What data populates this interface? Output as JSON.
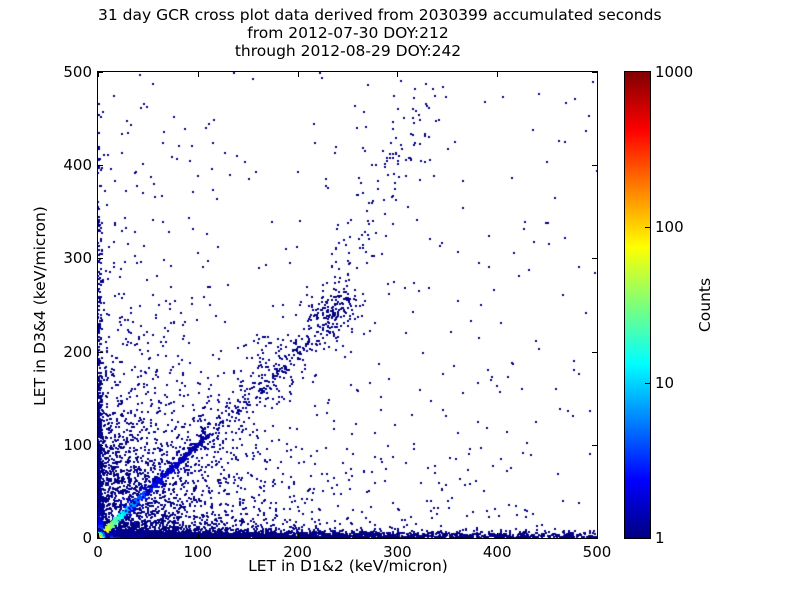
{
  "figure": {
    "background": "#ffffff",
    "title_lines": [
      "31 day GCR cross plot data derived from 2030399 accumulated seconds",
      "from 2012-07-30 DOY:212",
      "through 2012-08-29 DOY:242"
    ]
  },
  "chart_data": {
    "type": "heatmap",
    "title": "31 day GCR cross plot data derived from 2030399 accumulated seconds",
    "subtitle_lines": [
      "from 2012-07-30 DOY:212",
      "through 2012-08-29 DOY:242"
    ],
    "xlabel": "LET in D1&2 (keV/micron)",
    "ylabel": "LET in D3&4 (keV/micron)",
    "xlim": [
      0,
      500
    ],
    "ylim": [
      0,
      500
    ],
    "x_ticks": [
      0,
      100,
      200,
      300,
      400,
      500
    ],
    "y_ticks": [
      0,
      100,
      200,
      300,
      400,
      500
    ],
    "grid": false,
    "point_color_min": "#000080",
    "colorbar": {
      "label": "Counts",
      "scale": "log",
      "vmin": 1,
      "vmax": 1000,
      "ticks": [
        1,
        10,
        100,
        1000
      ],
      "colormap": "jet"
    },
    "colormap_stops": [
      {
        "pos": 0.0,
        "color": "#000080"
      },
      {
        "pos": 0.125,
        "color": "#0000ff"
      },
      {
        "pos": 0.25,
        "color": "#0080ff"
      },
      {
        "pos": 0.375,
        "color": "#00ffff"
      },
      {
        "pos": 0.5,
        "color": "#7dff7a"
      },
      {
        "pos": 0.625,
        "color": "#ffff00"
      },
      {
        "pos": 0.75,
        "color": "#ff8000"
      },
      {
        "pos": 0.875,
        "color": "#ff0000"
      },
      {
        "pos": 1.0,
        "color": "#800000"
      }
    ],
    "seed": 12345,
    "features": [
      {
        "id": "background-cloud-near-origin",
        "type": "exp2d",
        "points": 1600,
        "x_tau": 55,
        "y_tau": 55,
        "lv": 0,
        "size": 2
      },
      {
        "id": "background-cloud-wide",
        "type": "exp2d",
        "points": 450,
        "x_tau": 170,
        "y_tau": 80,
        "lv": 0,
        "size": 2
      },
      {
        "id": "background-cloud-left",
        "type": "exp2d",
        "points": 350,
        "x_tau": 45,
        "y_tau": 140,
        "lv": 0,
        "size": 2
      },
      {
        "id": "sparse-uniform-scatter",
        "type": "uniform",
        "points": 250,
        "lv": 0,
        "size": 2
      },
      {
        "id": "bottom-band-dense",
        "type": "hband",
        "points": 2400,
        "y_sigma": 3,
        "x_tau": 150,
        "hot": {
          "a": 3.0,
          "xs": 22,
          "ys": 2.2
        },
        "size": 2
      },
      {
        "id": "bottom-band-thick",
        "type": "hband",
        "points": 700,
        "y_sigma": 7,
        "x_tau": 80,
        "hot": {
          "a": 1.2,
          "xs": 20,
          "ys": 4
        },
        "size": 2
      },
      {
        "id": "bottom-band-full-width",
        "type": "hband_uniform",
        "points": 650,
        "y_sigma": 3.5,
        "lv": 0,
        "size": 2
      },
      {
        "id": "left-axis-band",
        "type": "vband",
        "points": 620,
        "x_sigma": 2.1,
        "y_tau": 115,
        "hot": {
          "a": 1.5,
          "ys": 11
        },
        "size": 2
      },
      {
        "id": "identity-diagonal-line",
        "type": "diag",
        "points": 1000,
        "from": 0,
        "to": 110,
        "jitter": 1.3,
        "weight": 1.7,
        "lv_a": 2.3,
        "lv_tau": 33,
        "size": 2
      },
      {
        "id": "diagonal-scatter-band",
        "type": "diag",
        "points": 300,
        "from": 30,
        "to": 260,
        "jitter": 6,
        "weight": 1.3,
        "lv_a": 0.6,
        "lv_tau": 60,
        "size": 2
      },
      {
        "id": "diagonal-scatter-wide",
        "type": "diag",
        "points": 200,
        "from": 40,
        "to": 250,
        "jitter": 17,
        "weight": 1.2,
        "lv_a": 0,
        "lv_tau": 1,
        "size": 2
      },
      {
        "id": "upper-diagonal-cluster",
        "type": "cluster",
        "points": 90,
        "cx": 235,
        "cy": 235,
        "sx": 14,
        "sy": 16,
        "lv": 0,
        "size": 2
      },
      {
        "id": "upper-band-bridge",
        "type": "segment",
        "points": 80,
        "x1": 150,
        "y1": 150,
        "x2": 230,
        "y2": 240,
        "jx": 14,
        "jy": 14,
        "lv": 0,
        "size": 2
      },
      {
        "id": "upper-vertical-band",
        "type": "segment",
        "points": 130,
        "x1": 230,
        "y1": 240,
        "x2": 338,
        "y2": 492,
        "jx": 13,
        "jy": 18,
        "lv": 0,
        "size": 2
      },
      {
        "id": "origin-hot-core",
        "type": "core",
        "points": 700,
        "r": 9.5,
        "size": 2
      }
    ]
  }
}
